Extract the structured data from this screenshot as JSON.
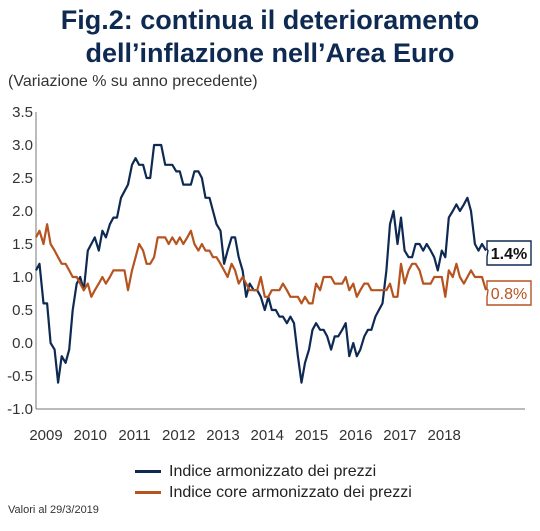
{
  "title_line1": "Fig.2: continua il deterioramento",
  "title_line2": "dell’inflazione nell’Area Euro",
  "subtitle": "(Variazione % su anno precedente)",
  "footer": "Valori al 29/3/2019",
  "chart_data": {
    "type": "line",
    "title": "Fig.2: continua il deterioramento dell’inflazione nell’Area Euro",
    "ylabel": "(Variazione % su anno precedente)",
    "xlabel": "",
    "ylim": [
      -1.0,
      3.5
    ],
    "yticks": [
      "3.5",
      "3.0",
      "2.5",
      "2.0",
      "1.5",
      "1.0",
      "0.5",
      "0.0",
      "-0.5",
      "-1.0"
    ],
    "xticks": [
      "2009",
      "2010",
      "2011",
      "2012",
      "2013",
      "2014",
      "2015",
      "2016",
      "2017",
      "2018"
    ],
    "grid": false,
    "legend_position": "bottom",
    "series": [
      {
        "name": "Indice armonizzato dei prezzi",
        "color": "#0e2a52",
        "end_label": "1.4%",
        "x": [
          2009.0,
          2009.08,
          2009.17,
          2009.25,
          2009.33,
          2009.42,
          2009.5,
          2009.58,
          2009.67,
          2009.75,
          2009.83,
          2009.92,
          2010.0,
          2010.08,
          2010.17,
          2010.25,
          2010.33,
          2010.42,
          2010.5,
          2010.58,
          2010.67,
          2010.75,
          2010.83,
          2010.92,
          2011.0,
          2011.08,
          2011.17,
          2011.25,
          2011.33,
          2011.42,
          2011.5,
          2011.58,
          2011.67,
          2011.75,
          2011.83,
          2011.92,
          2012.0,
          2012.08,
          2012.17,
          2012.25,
          2012.33,
          2012.42,
          2012.5,
          2012.58,
          2012.67,
          2012.75,
          2012.83,
          2012.92,
          2013.0,
          2013.08,
          2013.17,
          2013.25,
          2013.33,
          2013.42,
          2013.5,
          2013.58,
          2013.67,
          2013.75,
          2013.83,
          2013.92,
          2014.0,
          2014.08,
          2014.17,
          2014.25,
          2014.33,
          2014.42,
          2014.5,
          2014.58,
          2014.67,
          2014.75,
          2014.83,
          2014.92,
          2015.0,
          2015.08,
          2015.17,
          2015.25,
          2015.33,
          2015.42,
          2015.5,
          2015.58,
          2015.67,
          2015.75,
          2015.83,
          2015.92,
          2016.0,
          2016.08,
          2016.17,
          2016.25,
          2016.33,
          2016.42,
          2016.5,
          2016.58,
          2016.67,
          2016.75,
          2016.83,
          2016.92,
          2017.0,
          2017.08,
          2017.17,
          2017.25,
          2017.33,
          2017.42,
          2017.5,
          2017.58,
          2017.67,
          2017.75,
          2017.83,
          2017.92,
          2018.0,
          2018.08,
          2018.17,
          2018.25,
          2018.33,
          2018.42,
          2018.5,
          2018.58,
          2018.67,
          2018.75,
          2018.83,
          2018.92,
          2019.0,
          2019.08,
          2019.17
        ],
        "values": [
          1.1,
          1.2,
          0.6,
          0.6,
          0.0,
          -0.1,
          -0.6,
          -0.2,
          -0.3,
          -0.1,
          0.5,
          0.9,
          1.0,
          0.8,
          1.4,
          1.5,
          1.6,
          1.4,
          1.7,
          1.6,
          1.8,
          1.9,
          1.9,
          2.2,
          2.3,
          2.4,
          2.7,
          2.8,
          2.7,
          2.7,
          2.5,
          2.5,
          3.0,
          3.0,
          3.0,
          2.7,
          2.7,
          2.7,
          2.6,
          2.6,
          2.4,
          2.4,
          2.4,
          2.6,
          2.6,
          2.5,
          2.2,
          2.2,
          2.0,
          1.8,
          1.7,
          1.2,
          1.4,
          1.6,
          1.6,
          1.3,
          1.1,
          0.7,
          0.9,
          0.8,
          0.8,
          0.7,
          0.5,
          0.7,
          0.5,
          0.5,
          0.4,
          0.4,
          0.3,
          0.4,
          0.3,
          -0.2,
          -0.6,
          -0.3,
          -0.1,
          0.2,
          0.3,
          0.2,
          0.2,
          0.1,
          -0.1,
          0.1,
          0.1,
          0.2,
          0.3,
          -0.2,
          0.0,
          -0.2,
          -0.1,
          0.1,
          0.2,
          0.2,
          0.4,
          0.5,
          0.6,
          1.1,
          1.8,
          2.0,
          1.5,
          1.9,
          1.4,
          1.3,
          1.3,
          1.5,
          1.5,
          1.4,
          1.5,
          1.4,
          1.3,
          1.1,
          1.4,
          1.3,
          1.9,
          2.0,
          2.1,
          2.0,
          2.1,
          2.2,
          2.0,
          1.5,
          1.4,
          1.5,
          1.4
        ]
      },
      {
        "name": "Indice core armonizzato dei prezzi",
        "color": "#b5541f",
        "end_label": "0.8%",
        "x": [
          2009.0,
          2009.08,
          2009.17,
          2009.25,
          2009.33,
          2009.42,
          2009.5,
          2009.58,
          2009.67,
          2009.75,
          2009.83,
          2009.92,
          2010.0,
          2010.08,
          2010.17,
          2010.25,
          2010.33,
          2010.42,
          2010.5,
          2010.58,
          2010.67,
          2010.75,
          2010.83,
          2010.92,
          2011.0,
          2011.08,
          2011.17,
          2011.25,
          2011.33,
          2011.42,
          2011.5,
          2011.58,
          2011.67,
          2011.75,
          2011.83,
          2011.92,
          2012.0,
          2012.08,
          2012.17,
          2012.25,
          2012.33,
          2012.42,
          2012.5,
          2012.58,
          2012.67,
          2012.75,
          2012.83,
          2012.92,
          2013.0,
          2013.08,
          2013.17,
          2013.25,
          2013.33,
          2013.42,
          2013.5,
          2013.58,
          2013.67,
          2013.75,
          2013.83,
          2013.92,
          2014.0,
          2014.08,
          2014.17,
          2014.25,
          2014.33,
          2014.42,
          2014.5,
          2014.58,
          2014.67,
          2014.75,
          2014.83,
          2014.92,
          2015.0,
          2015.08,
          2015.17,
          2015.25,
          2015.33,
          2015.42,
          2015.5,
          2015.58,
          2015.67,
          2015.75,
          2015.83,
          2015.92,
          2016.0,
          2016.08,
          2016.17,
          2016.25,
          2016.33,
          2016.42,
          2016.5,
          2016.58,
          2016.67,
          2016.75,
          2016.83,
          2016.92,
          2017.0,
          2017.08,
          2017.17,
          2017.25,
          2017.33,
          2017.42,
          2017.5,
          2017.58,
          2017.67,
          2017.75,
          2017.83,
          2017.92,
          2018.0,
          2018.08,
          2018.17,
          2018.25,
          2018.33,
          2018.42,
          2018.5,
          2018.58,
          2018.67,
          2018.75,
          2018.83,
          2018.92,
          2019.0,
          2019.08,
          2019.17
        ],
        "values": [
          1.6,
          1.7,
          1.5,
          1.8,
          1.5,
          1.4,
          1.3,
          1.2,
          1.2,
          1.1,
          1.0,
          1.0,
          0.9,
          0.8,
          0.9,
          0.7,
          0.8,
          0.9,
          1.0,
          0.9,
          1.0,
          1.1,
          1.1,
          1.1,
          1.1,
          0.8,
          1.1,
          1.3,
          1.5,
          1.4,
          1.2,
          1.2,
          1.3,
          1.6,
          1.6,
          1.6,
          1.5,
          1.6,
          1.5,
          1.6,
          1.5,
          1.6,
          1.7,
          1.5,
          1.4,
          1.5,
          1.4,
          1.4,
          1.3,
          1.3,
          1.2,
          1.1,
          1.0,
          1.2,
          1.1,
          0.9,
          1.0,
          0.9,
          0.8,
          0.8,
          0.8,
          1.0,
          0.7,
          0.7,
          0.8,
          0.8,
          0.8,
          0.9,
          0.8,
          0.7,
          0.7,
          0.7,
          0.6,
          0.7,
          0.6,
          0.6,
          0.9,
          0.8,
          1.0,
          1.0,
          1.0,
          0.9,
          0.9,
          0.9,
          1.0,
          0.8,
          0.9,
          0.7,
          0.8,
          0.9,
          0.9,
          0.8,
          0.8,
          0.8,
          0.8,
          0.8,
          0.9,
          0.7,
          0.7,
          1.2,
          0.9,
          1.1,
          1.2,
          1.2,
          1.1,
          0.9,
          0.9,
          0.9,
          1.0,
          1.0,
          1.0,
          0.7,
          1.1,
          1.0,
          1.2,
          1.0,
          0.9,
          1.0,
          1.1,
          1.0,
          1.0,
          1.0,
          0.8
        ]
      }
    ]
  }
}
